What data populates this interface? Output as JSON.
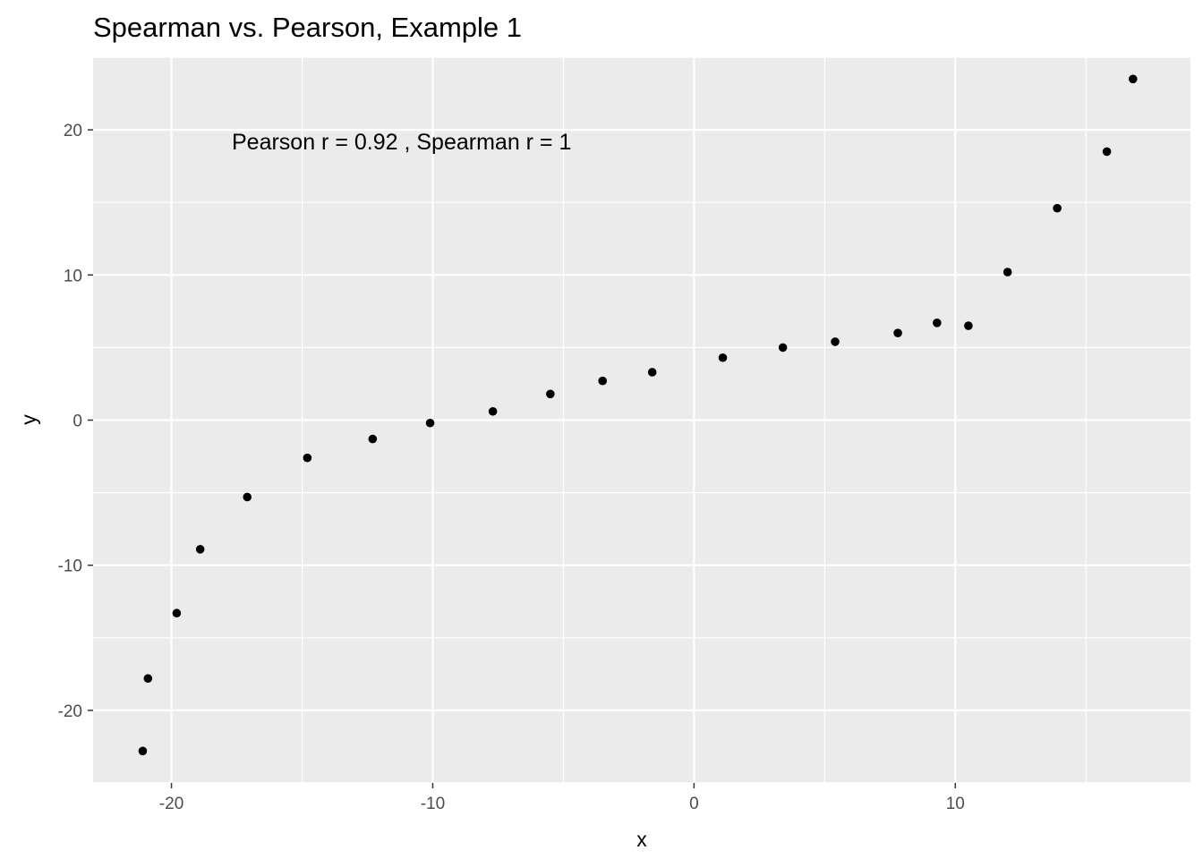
{
  "chart_data": {
    "type": "scatter",
    "title": "Spearman vs. Pearson, Example 1",
    "xlabel": "x",
    "ylabel": "y",
    "xlim": [
      -23,
      19
    ],
    "ylim": [
      -25,
      25
    ],
    "x_ticks": [
      -20,
      -10,
      0,
      10
    ],
    "y_ticks": [
      -20,
      -10,
      0,
      10,
      20
    ],
    "x_tick_labels": [
      "-20",
      "-10",
      "0",
      "10"
    ],
    "y_tick_labels": [
      "-20",
      "-10",
      "0",
      "10",
      "20"
    ],
    "grid": true,
    "legend": "none",
    "colors": {
      "panel": "#ebebeb",
      "grid": "#ffffff",
      "point": "#000000",
      "tick": "#333333",
      "tick_text": "#4d4d4d"
    },
    "annotation": {
      "text": "Pearson r =  0.92 , Spearman r =  1",
      "x": -18,
      "y": 20
    },
    "points": [
      {
        "x": -21.1,
        "y": -22.8
      },
      {
        "x": -20.9,
        "y": -17.8
      },
      {
        "x": -19.8,
        "y": -13.3
      },
      {
        "x": -18.9,
        "y": -8.9
      },
      {
        "x": -17.1,
        "y": -5.3
      },
      {
        "x": -14.8,
        "y": -2.6
      },
      {
        "x": -12.3,
        "y": -1.3
      },
      {
        "x": -10.1,
        "y": -0.2
      },
      {
        "x": -7.7,
        "y": 0.6
      },
      {
        "x": -5.5,
        "y": 1.8
      },
      {
        "x": -3.5,
        "y": 2.7
      },
      {
        "x": -1.6,
        "y": 3.3
      },
      {
        "x": 1.1,
        "y": 4.3
      },
      {
        "x": 3.4,
        "y": 5.0
      },
      {
        "x": 5.4,
        "y": 5.4
      },
      {
        "x": 7.8,
        "y": 6.0
      },
      {
        "x": 9.3,
        "y": 6.7
      },
      {
        "x": 10.5,
        "y": 6.5
      },
      {
        "x": 12.0,
        "y": 10.2
      },
      {
        "x": 13.9,
        "y": 14.6
      },
      {
        "x": 15.8,
        "y": 18.5
      },
      {
        "x": 16.8,
        "y": 23.5
      }
    ]
  }
}
